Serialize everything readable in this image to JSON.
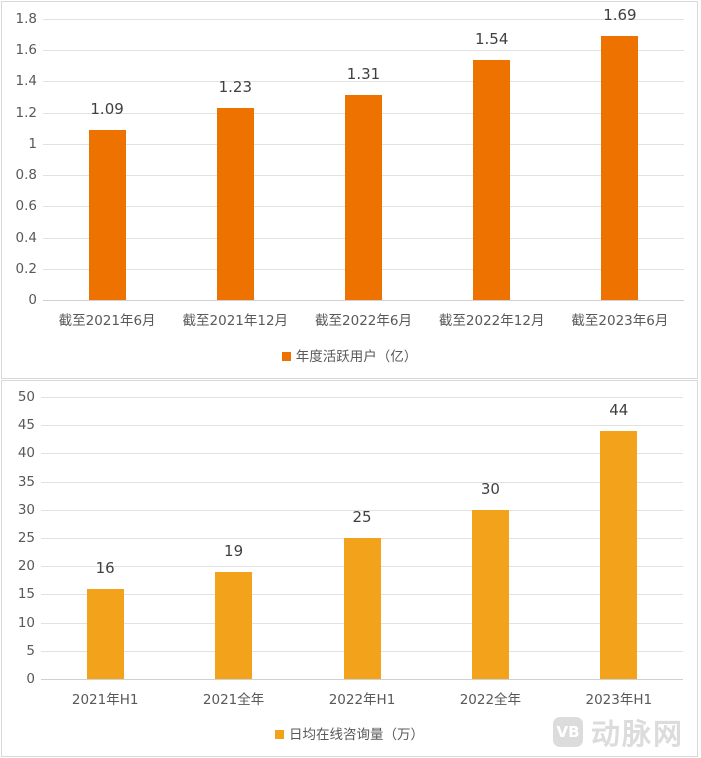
{
  "chart_data": [
    {
      "type": "bar",
      "title": "",
      "categories": [
        "截至2021年6月",
        "截至2021年12月",
        "截至2022年6月",
        "截至2022年12月",
        "截至2023年6月"
      ],
      "series": [
        {
          "name": "年度活跃用户（亿）",
          "values": [
            1.09,
            1.23,
            1.31,
            1.54,
            1.69
          ],
          "color": "#ED7200"
        }
      ],
      "value_labels": [
        "1.09",
        "1.23",
        "1.31",
        "1.54",
        "1.69"
      ],
      "xlabel": "",
      "ylabel": "",
      "ylim": [
        0,
        1.8
      ],
      "yticks": [
        "0",
        "0.2",
        "0.4",
        "0.6",
        "0.8",
        "1",
        "1.2",
        "1.4",
        "1.6",
        "1.8"
      ],
      "grid": true,
      "legend_position": "bottom"
    },
    {
      "type": "bar",
      "title": "",
      "categories": [
        "2021年H1",
        "2021全年",
        "2022年H1",
        "2022全年",
        "2023年H1"
      ],
      "series": [
        {
          "name": "日均在线咨询量（万）",
          "values": [
            16,
            19,
            25,
            30,
            44
          ],
          "color": "#F2A31B"
        }
      ],
      "value_labels": [
        "16",
        "19",
        "25",
        "30",
        "44"
      ],
      "xlabel": "",
      "ylabel": "",
      "ylim": [
        0,
        50
      ],
      "yticks": [
        "0",
        "5",
        "10",
        "15",
        "20",
        "25",
        "30",
        "35",
        "40",
        "45",
        "50"
      ],
      "grid": true,
      "legend_position": "bottom"
    }
  ],
  "watermark": {
    "logo": "VB",
    "text": "动脉网"
  }
}
